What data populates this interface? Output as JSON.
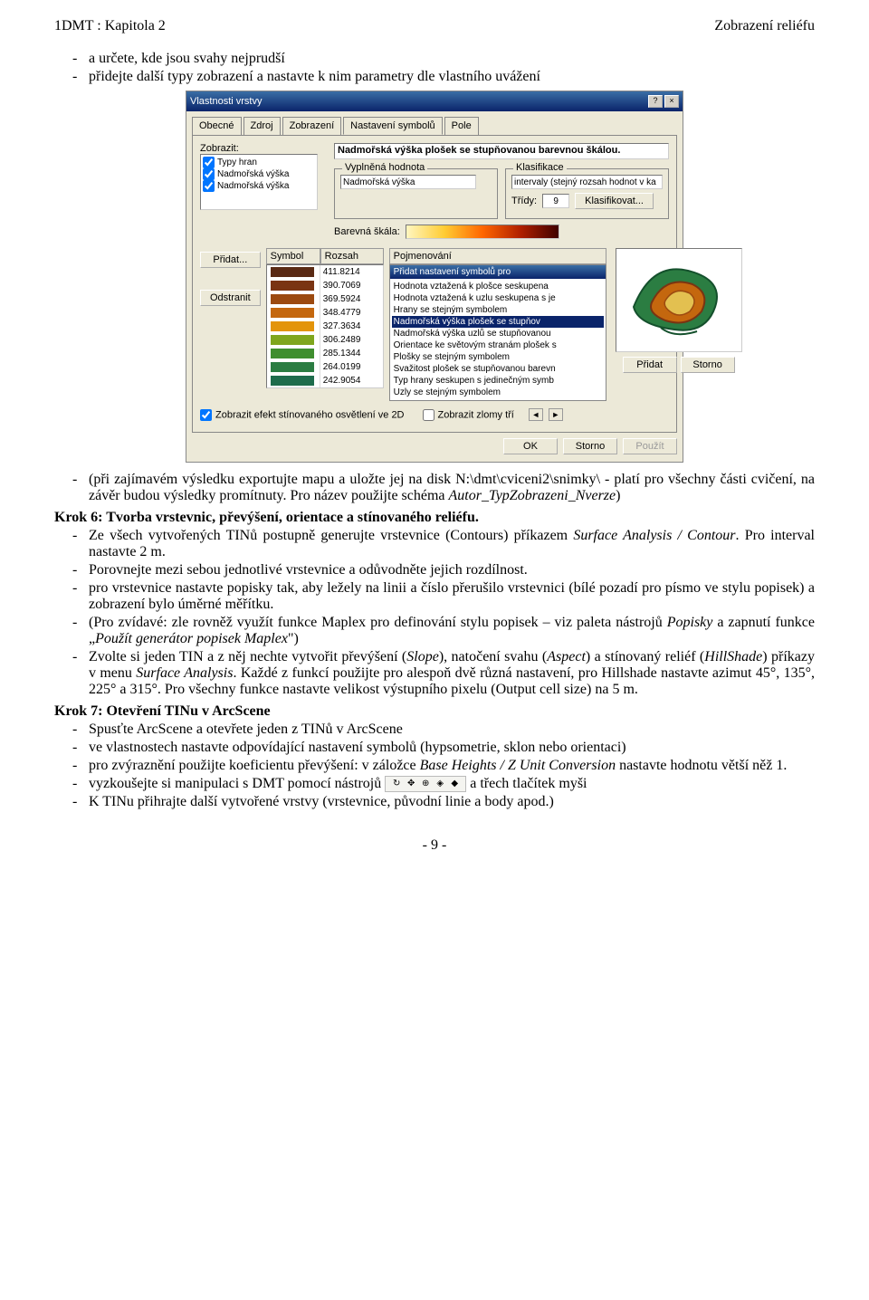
{
  "header": {
    "left": "1DMT : Kapitola 2",
    "right": "Zobrazení reliéfu"
  },
  "intro": {
    "b1": "a určete, kde jsou svahy nejprudší",
    "b2": "přidejte další typy zobrazení a nastavte k nim parametry dle vlastního uvážení"
  },
  "dlg": {
    "title": "Vlastnosti vrstvy",
    "tabs": {
      "t1": "Obecné",
      "t2": "Zdroj",
      "t3": "Zobrazení",
      "t4": "Nastavení symbolů",
      "t5": "Pole"
    },
    "zobrazit": "Zobrazit:",
    "chk": {
      "c1": "Typy hran",
      "c2": "Nadmořská výška",
      "c3": "Nadmořská výška"
    },
    "fieldLong": "Nadmořská výška plošek se stupňovanou barevnou škálou.",
    "vypln": {
      "title": "Vyplněná hodnota",
      "val": "Nadmořská výška"
    },
    "klas": {
      "title": "Klasifikace",
      "val": "intervaly (stejný rozsah hodnot v ka",
      "tridy": "Třídy:",
      "n": "9",
      "btn": "Klasifikovat..."
    },
    "barskala": "Barevná škála:",
    "cols": {
      "sym": "Symbol",
      "rng": "Rozsah",
      "pojm": "Pojmenování"
    },
    "rows": [
      {
        "c": "#5a2a14",
        "v": "411.8214"
      },
      {
        "c": "#7a3412",
        "v": "390.7069"
      },
      {
        "c": "#9c4a10",
        "v": "369.5924"
      },
      {
        "c": "#c4670e",
        "v": "348.4779"
      },
      {
        "c": "#e3940a",
        "v": "327.3634"
      },
      {
        "c": "#7fa61d",
        "v": "306.2489"
      },
      {
        "c": "#3f8e2e",
        "v": "285.1344"
      },
      {
        "c": "#2b7d42",
        "v": "264.0199"
      },
      {
        "c": "#1e6c4c",
        "v": "242.9054"
      }
    ],
    "add": "Přidat...",
    "rem": "Odstranit",
    "chkStin": "Zobrazit efekt stínovaného osvětlení ve 2D",
    "chkZlomy": "Zobrazit zlomy tří",
    "popup": {
      "title": "Přidat nastavení symbolů pro",
      "items": [
        "Hodnota vztažená k plošce seskupena",
        "Hodnota vztažená k uzlu seskupena s je",
        "Hrany se stejným symbolem",
        "Nadmořská výška plošek se stupňov",
        "Nadmořská výška uzlů se stupňovanou",
        "Orientace ke světovým stranám plošek s",
        "Plošky se stejným symbolem",
        "Svažitost plošek se stupňovanou barevn",
        "Typ hrany seskupen s jedinečným symb",
        "Uzly se stejným symbolem"
      ],
      "sel": 3,
      "btnAdd": "Přidat",
      "btnCancel": "Storno"
    },
    "ok": "OK",
    "storno": "Storno",
    "pouzit": "Použít"
  },
  "after": {
    "b1a": "(při zajímavém výsledku exportujte mapu a uložte jej na disk N:\\dmt\\cviceni2\\snimky\\ - platí pro všechny části cvičení, na závěr budou výsledky promítnuty. Pro název použijte schéma ",
    "b1b": "Autor_TypZobrazeni_Nverze",
    "b1c": ")"
  },
  "k6": "Krok 6: Tvorba vrstevnic, převýšení, orientace a stínovaného reliéfu.",
  "k6b": {
    "b1a": "Ze všech vytvořených TINů postupně generujte vrstevnice (Contours) příkazem ",
    "b1b": "Surface Analysis / Contour",
    "b1c": ". Pro interval nastavte 2 m.",
    "b2": "Porovnejte mezi sebou jednotlivé vrstevnice a odůvodněte jejich rozdílnost.",
    "b3": "pro vrstevnice nastavte popisky tak, aby ležely na linii a číslo přerušilo vrstevnici (bílé pozadí pro písmo ve stylu popisek) a zobrazení bylo úměrné měřítku.",
    "b4a": "(Pro zvídavé: zle rovněž využít funkce Maplex pro definování stylu popisek – viz paleta nástrojů ",
    "b4b": "Popisky",
    "b4c": " a zapnutí funkce „",
    "b4d": "Použít generátor popisek Maplex",
    "b4e": "\")",
    "b5a": "Zvolte si jeden TIN a z něj nechte vytvořit převýšení (",
    "b5b": "Slope",
    "b5c": "), natočení svahu (",
    "b5d": "Aspect",
    "b5e": ") a stínovaný reliéf (",
    "b5f": "HillShade",
    "b5g": ")  příkazy v menu ",
    "b5h": "Surface Analysis",
    "b5i": ". Každé z funkcí použijte pro alespoň dvě různá nastavení, pro Hillshade nastavte azimut 45°, 135°, 225° a 315°. Pro všechny funkce nastavte velikost výstupního pixelu (Output cell size) na 5 m."
  },
  "k7": "Krok 7: Otevření TINu v ArcScene",
  "k7b": {
    "b1": "Spusťte ArcScene a otevřete jeden z TINů v ArcScene",
    "b2": "ve vlastnostech nastavte odpovídající nastavení symbolů (hypsometrie, sklon nebo orientaci)",
    "b3a": "pro zvýraznění použijte koeficientu převýšení: v záložce ",
    "b3b": "Base Heights / Z Unit Conversion",
    "b3c": " nastavte hodnotu větší něž 1.",
    "b4a": "vyzkoušejte si manipulaci s DMT pomocí nástrojů ",
    "b4b": "a třech tlačítek myši",
    "b5": "K TINu přihrajte další vytvořené vrstvy (vrstevnice, původní linie a body apod.)"
  },
  "page": "- 9 -"
}
